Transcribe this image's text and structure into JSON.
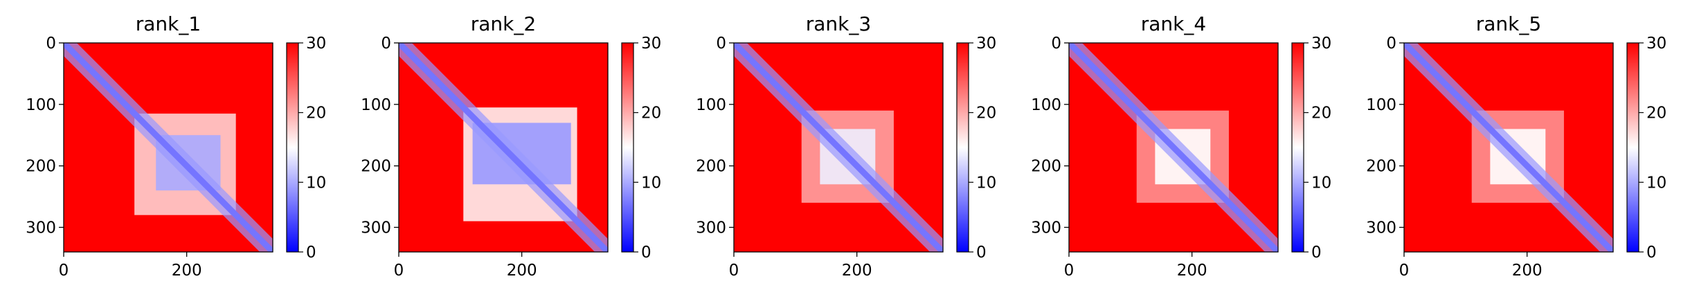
{
  "chart_data": [
    {
      "type": "heatmap",
      "title": "rank_1",
      "x_ticks": [
        "0",
        "200"
      ],
      "y_ticks": [
        "0",
        "100",
        "200",
        "300"
      ],
      "xlim": [
        0,
        340
      ],
      "ylim": [
        340,
        0
      ],
      "colorbar": {
        "ticks": [
          "0",
          "10",
          "20",
          "30"
        ],
        "range": [
          0,
          30
        ],
        "colormap": "bwr"
      },
      "regions": [
        {
          "kind": "background",
          "value": 30
        },
        {
          "kind": "diagonal",
          "value": 2,
          "width": 10
        },
        {
          "kind": "near-diagonal",
          "value": 9,
          "width": 30
        },
        {
          "kind": "block",
          "x": [
            115,
            280
          ],
          "y": [
            115,
            280
          ],
          "value": 17
        },
        {
          "kind": "dense-block",
          "x": [
            150,
            255
          ],
          "y": [
            150,
            240
          ],
          "value": 10
        }
      ]
    },
    {
      "type": "heatmap",
      "title": "rank_2",
      "x_ticks": [
        "0",
        "200"
      ],
      "y_ticks": [
        "0",
        "100",
        "200",
        "300"
      ],
      "xlim": [
        0,
        340
      ],
      "ylim": [
        340,
        0
      ],
      "colorbar": {
        "ticks": [
          "0",
          "10",
          "20",
          "30"
        ],
        "range": [
          0,
          30
        ],
        "colormap": "bwr"
      },
      "regions": [
        {
          "kind": "background",
          "value": 30
        },
        {
          "kind": "diagonal",
          "value": 2,
          "width": 10
        },
        {
          "kind": "near-diagonal",
          "value": 9,
          "width": 30
        },
        {
          "kind": "block",
          "x": [
            105,
            290
          ],
          "y": [
            105,
            290
          ],
          "value": 15
        },
        {
          "kind": "dense-block",
          "x": [
            120,
            280
          ],
          "y": [
            130,
            230
          ],
          "value": 9
        }
      ]
    },
    {
      "type": "heatmap",
      "title": "rank_3",
      "x_ticks": [
        "0",
        "200"
      ],
      "y_ticks": [
        "0",
        "100",
        "200",
        "300"
      ],
      "xlim": [
        0,
        340
      ],
      "ylim": [
        340,
        0
      ],
      "colorbar": {
        "ticks": [
          "0",
          "10",
          "20",
          "30"
        ],
        "range": [
          0,
          30
        ],
        "colormap": "bwr"
      },
      "regions": [
        {
          "kind": "background",
          "value": 30
        },
        {
          "kind": "diagonal",
          "value": 2,
          "width": 10
        },
        {
          "kind": "near-diagonal",
          "value": 9,
          "width": 30
        },
        {
          "kind": "block",
          "x": [
            110,
            260
          ],
          "y": [
            110,
            260
          ],
          "value": 20
        },
        {
          "kind": "dense-block",
          "x": [
            140,
            230
          ],
          "y": [
            140,
            230
          ],
          "value": 14
        }
      ]
    },
    {
      "type": "heatmap",
      "title": "rank_4",
      "x_ticks": [
        "0",
        "200"
      ],
      "y_ticks": [
        "0",
        "100",
        "200",
        "300"
      ],
      "xlim": [
        0,
        340
      ],
      "ylim": [
        340,
        0
      ],
      "colorbar": {
        "ticks": [
          "0",
          "10",
          "20",
          "30"
        ],
        "range": [
          0,
          30
        ],
        "colormap": "bwr"
      },
      "regions": [
        {
          "kind": "background",
          "value": 30
        },
        {
          "kind": "diagonal",
          "value": 2,
          "width": 10
        },
        {
          "kind": "near-diagonal",
          "value": 9,
          "width": 30
        },
        {
          "kind": "block",
          "x": [
            110,
            260
          ],
          "y": [
            110,
            260
          ],
          "value": 21
        },
        {
          "kind": "dense-block",
          "x": [
            140,
            230
          ],
          "y": [
            140,
            230
          ],
          "value": 15
        }
      ]
    },
    {
      "type": "heatmap",
      "title": "rank_5",
      "x_ticks": [
        "0",
        "200"
      ],
      "y_ticks": [
        "0",
        "100",
        "200",
        "300"
      ],
      "xlim": [
        0,
        340
      ],
      "ylim": [
        340,
        0
      ],
      "colorbar": {
        "ticks": [
          "0",
          "10",
          "20",
          "30"
        ],
        "range": [
          0,
          30
        ],
        "colormap": "bwr"
      },
      "regions": [
        {
          "kind": "background",
          "value": 30
        },
        {
          "kind": "diagonal",
          "value": 2,
          "width": 10
        },
        {
          "kind": "near-diagonal",
          "value": 9,
          "width": 30
        },
        {
          "kind": "block",
          "x": [
            110,
            260
          ],
          "y": [
            110,
            260
          ],
          "value": 21
        },
        {
          "kind": "dense-block",
          "x": [
            140,
            230
          ],
          "y": [
            140,
            230
          ],
          "value": 15
        }
      ]
    }
  ]
}
